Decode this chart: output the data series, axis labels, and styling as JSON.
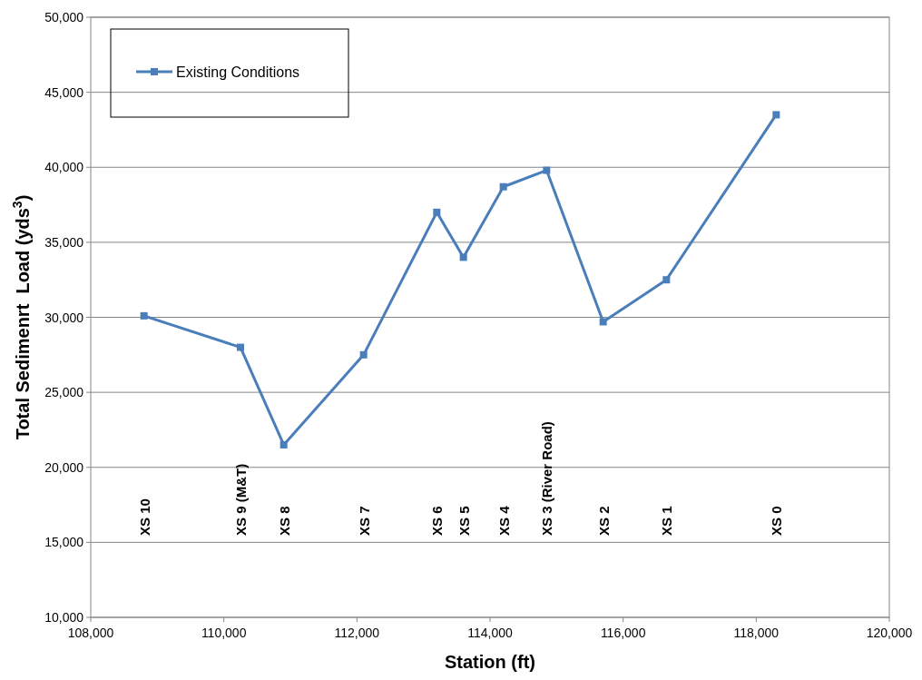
{
  "chart_data": {
    "type": "line",
    "xlabel": "Station (ft)",
    "ylabel": "Total Sedimenrt  Load (yds$^{3}$)",
    "x": [
      108800,
      110250,
      110900,
      112100,
      113200,
      113600,
      114200,
      114850,
      115700,
      116650,
      118300
    ],
    "series": [
      {
        "name": "Existing Conditions",
        "color": "#4a7ebb",
        "values": [
          30100,
          28000,
          21500,
          27500,
          37000,
          34000,
          38700,
          39800,
          29700,
          32500,
          43500
        ]
      }
    ],
    "xlim": [
      108000,
      120000
    ],
    "xticks": [
      {
        "value": 108000,
        "label": "108,000"
      },
      {
        "value": 110000,
        "label": "110,000"
      },
      {
        "value": 112000,
        "label": "112,000"
      },
      {
        "value": 114000,
        "label": "114,000"
      },
      {
        "value": 116000,
        "label": "116,000"
      },
      {
        "value": 118000,
        "label": "118,000"
      },
      {
        "value": 120000,
        "label": "120,000"
      }
    ],
    "ylim": [
      10000,
      50000
    ],
    "yticks": [
      {
        "value": 10000,
        "label": "10,000"
      },
      {
        "value": 15000,
        "label": "15,000"
      },
      {
        "value": 20000,
        "label": "20,000"
      },
      {
        "value": 25000,
        "label": "25,000"
      },
      {
        "value": 30000,
        "label": "30,000"
      },
      {
        "value": 35000,
        "label": "35,000"
      },
      {
        "value": 40000,
        "label": "40,000"
      },
      {
        "value": 45000,
        "label": "45,000"
      },
      {
        "value": 50000,
        "label": "50,000"
      }
    ],
    "grid": "y",
    "legend": "top left",
    "marker": "square",
    "line_style": "solid",
    "annotations": [
      "XS 10",
      "XS 9 (M&T)",
      "XS 8",
      "XS 7",
      "XS 6",
      "XS 5",
      "XS 4",
      "XS 3 (River Road)",
      "XS 2",
      "XS 1",
      "XS 0"
    ]
  }
}
